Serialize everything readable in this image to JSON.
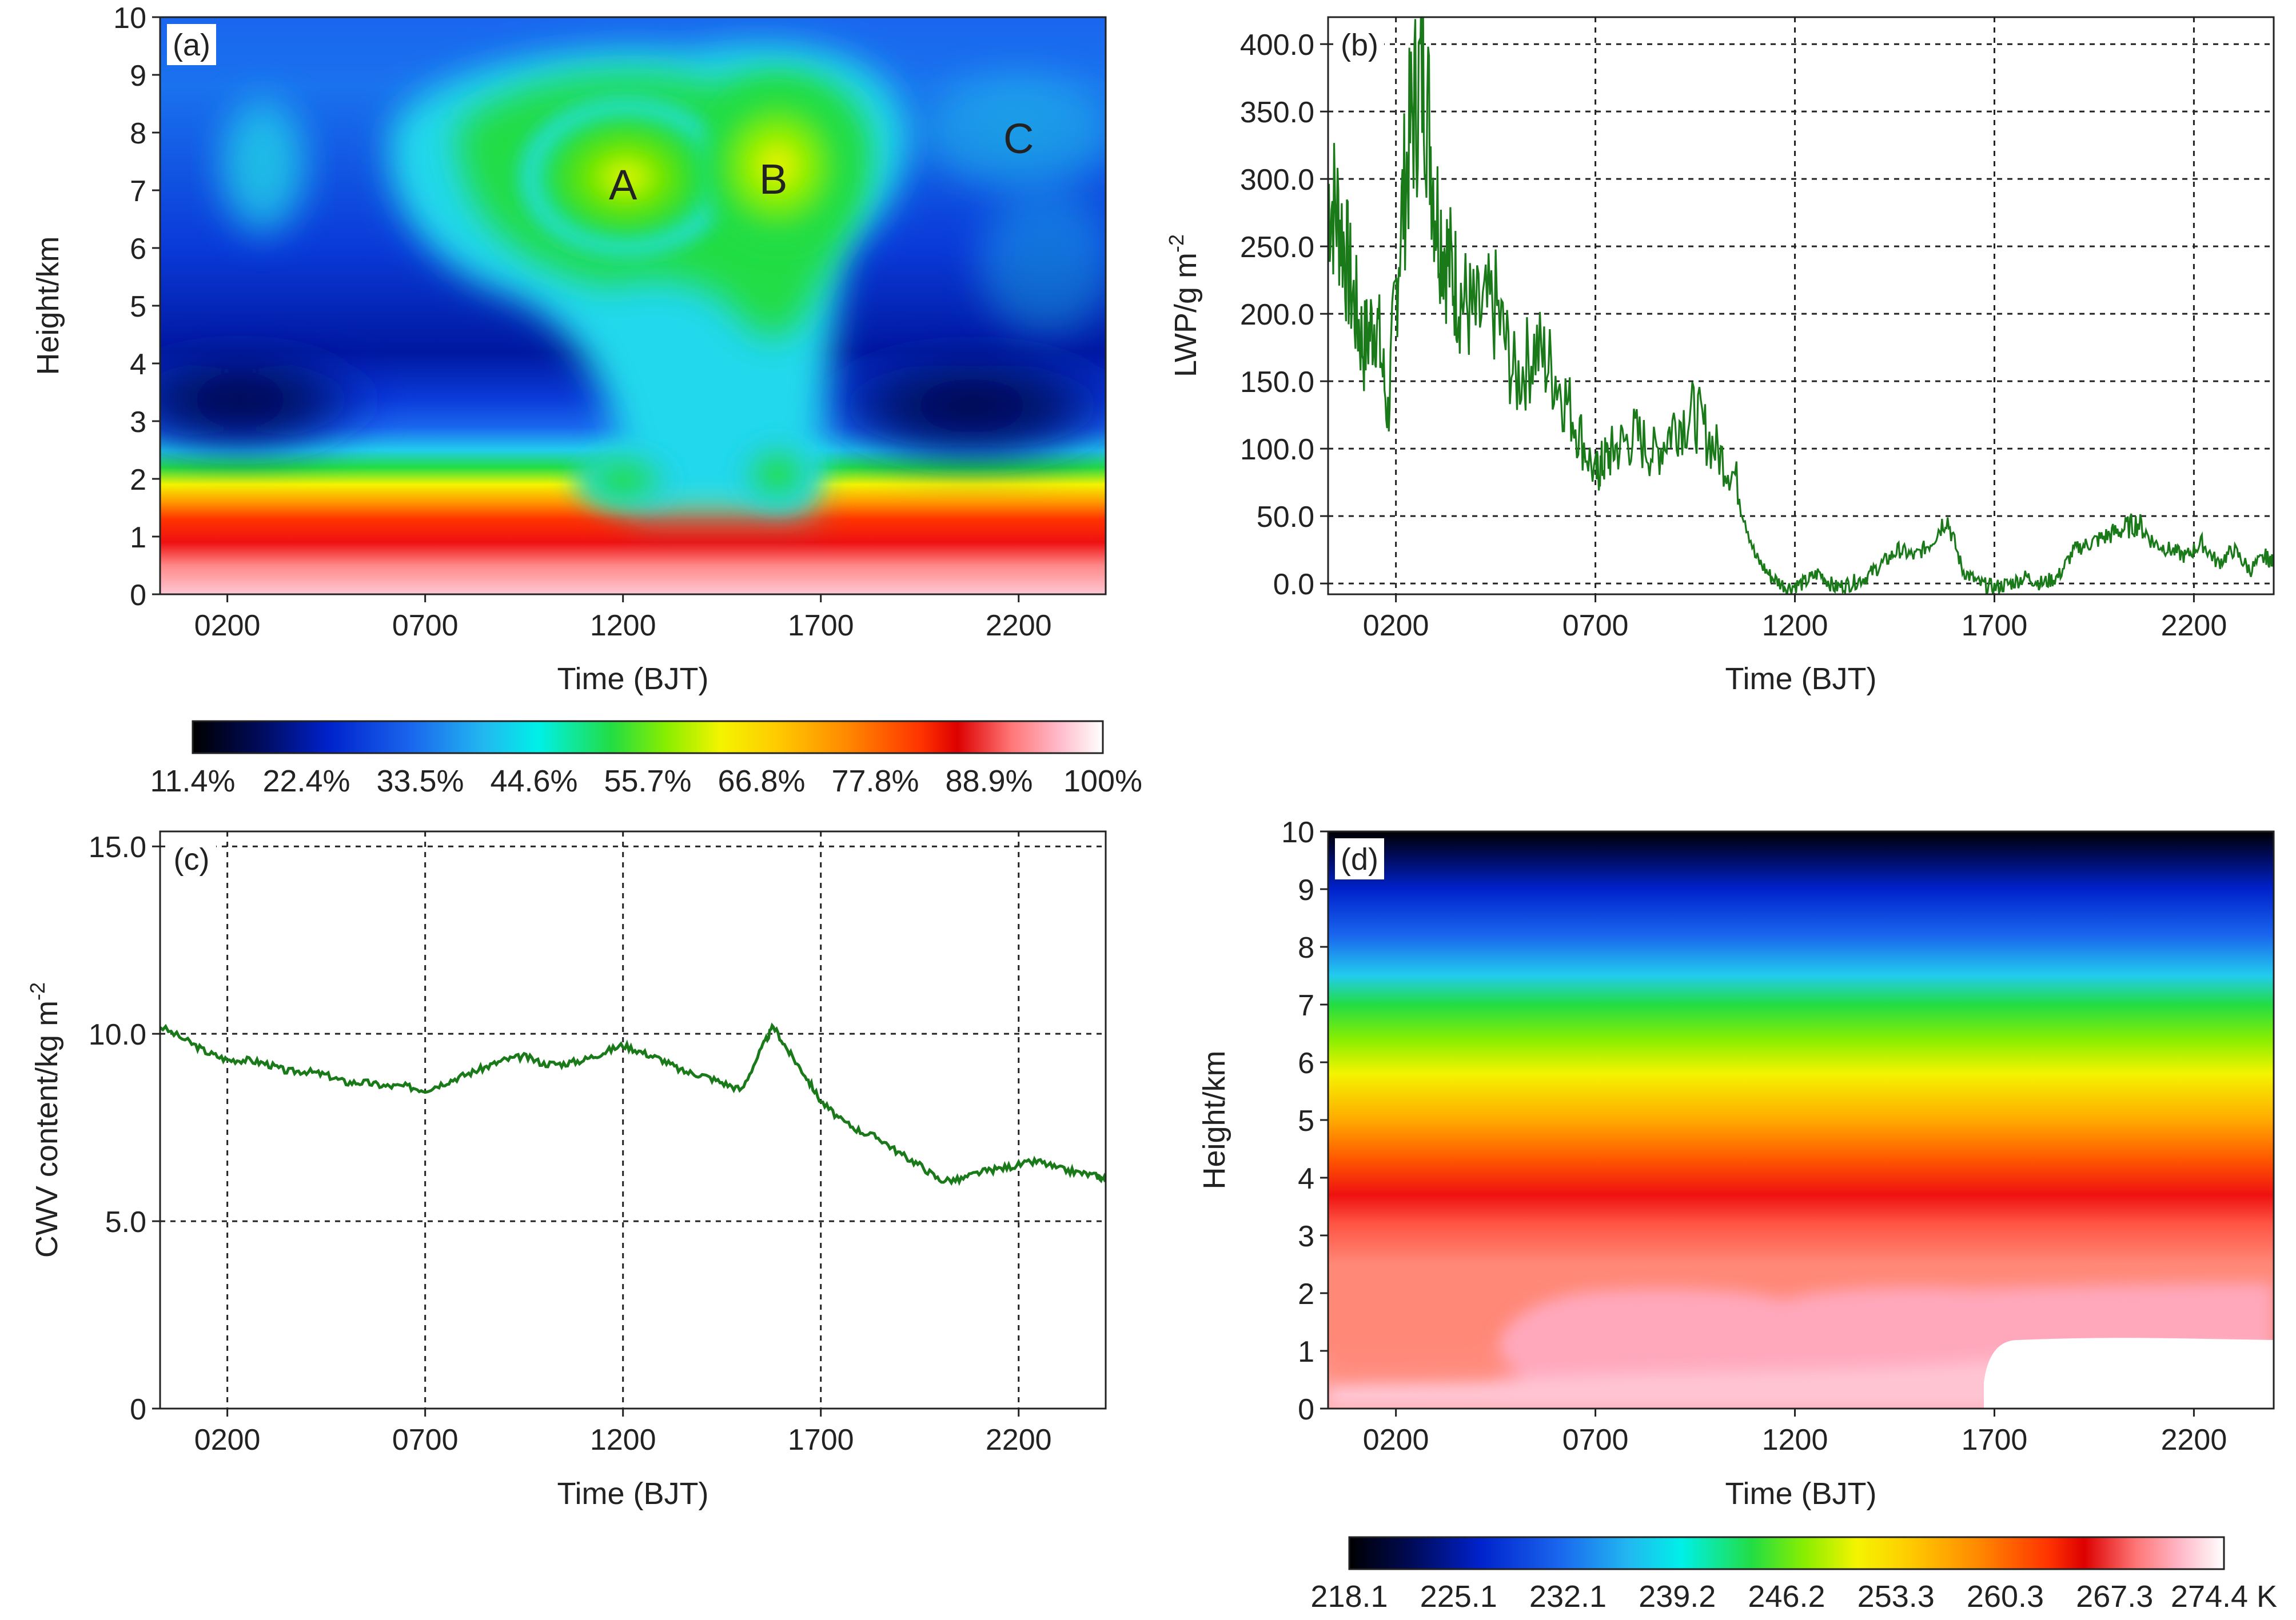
{
  "chart_data": [
    {
      "id": "a",
      "type": "heatmap",
      "panel_label": "(a)",
      "xlabel": "Time (BJT)",
      "ylabel": "Height/km",
      "x_ticks": [
        "0200",
        "0700",
        "1200",
        "1700",
        "2200"
      ],
      "x_tick_hours": [
        2,
        7,
        12,
        17,
        22
      ],
      "xlim_hours": [
        0.3,
        24.2
      ],
      "y_ticks": [
        "0",
        "1",
        "2",
        "3",
        "4",
        "5",
        "6",
        "7",
        "8",
        "9",
        "10"
      ],
      "ylim": [
        0,
        10
      ],
      "quantity": "relative humidity (%)",
      "annotations": [
        {
          "text": "A",
          "hour": 12.0,
          "height": 7.1
        },
        {
          "text": "B",
          "hour": 15.8,
          "height": 7.2
        },
        {
          "text": "C",
          "hour": 22.0,
          "height": 7.9
        }
      ],
      "colorbar": {
        "tick_labels": [
          "11.4%",
          "22.4%",
          "33.5%",
          "44.6%",
          "55.7%",
          "66.8%",
          "77.8%",
          "88.9%",
          "100%"
        ],
        "min": 11.4,
        "max": 100
      }
    },
    {
      "id": "b",
      "type": "line",
      "panel_label": "(b)",
      "xlabel": "Time (BJT)",
      "ylabel_main": "LWP/g m",
      "ylabel_sup": "-2",
      "x_ticks": [
        "0200",
        "0700",
        "1200",
        "1700",
        "2200"
      ],
      "x_tick_hours": [
        2,
        7,
        12,
        17,
        22
      ],
      "xlim_hours": [
        0.3,
        24.0
      ],
      "y_ticks": [
        "0.0",
        "50.0",
        "100.0",
        "150.0",
        "200.0",
        "250.0",
        "300.0",
        "350.0",
        "400.0"
      ],
      "ylim": [
        -8,
        420
      ],
      "grid": true,
      "series": [
        {
          "color": "#1a7a1a",
          "x": [
            0.3,
            0.6,
            0.9,
            1.2,
            1.5,
            1.8,
            2.1,
            2.4,
            2.7,
            3.0,
            3.3,
            3.6,
            4.0,
            4.5,
            5.0,
            5.5,
            6.0,
            6.5,
            7.0,
            7.2,
            7.5,
            8.0,
            8.5,
            9.0,
            9.5,
            10.0,
            10.5,
            11.0,
            11.4,
            11.8,
            12.2,
            12.6,
            13.0,
            13.4,
            13.8,
            14.2,
            14.6,
            15.0,
            15.4,
            15.8,
            16.2,
            16.6,
            17.0,
            17.4,
            17.8,
            18.2,
            18.6,
            19.0,
            19.4,
            19.8,
            20.2,
            20.6,
            21.0,
            21.4,
            21.8,
            22.2,
            22.6,
            23.0,
            23.4,
            23.8,
            24.0
          ],
          "y": [
            290,
            270,
            215,
            175,
            200,
            125,
            260,
            345,
            385,
            280,
            240,
            215,
            195,
            205,
            150,
            175,
            155,
            120,
            80,
            90,
            100,
            110,
            95,
            120,
            125,
            100,
            80,
            20,
            5,
            -3,
            0,
            8,
            -3,
            0,
            5,
            15,
            25,
            20,
            30,
            50,
            10,
            0,
            -3,
            0,
            5,
            0,
            5,
            25,
            30,
            35,
            40,
            45,
            30,
            25,
            20,
            30,
            15,
            25,
            10,
            20,
            15
          ]
        }
      ]
    },
    {
      "id": "c",
      "type": "line",
      "panel_label": "(c)",
      "xlabel": "Time (BJT)",
      "ylabel_main": "CWV content/kg m",
      "ylabel_sup": "-2",
      "x_ticks": [
        "0200",
        "0700",
        "1200",
        "1700",
        "2200"
      ],
      "x_tick_hours": [
        2,
        7,
        12,
        17,
        22
      ],
      "xlim_hours": [
        0.3,
        24.2
      ],
      "y_ticks": [
        "0",
        "5.0",
        "10.0",
        "15.0"
      ],
      "y_tick_values": [
        0,
        5,
        10,
        15
      ],
      "ylim": [
        0,
        15.4
      ],
      "grid": true,
      "series": [
        {
          "color": "#1a7a1a",
          "x": [
            0.3,
            1.0,
            1.5,
            2.0,
            2.5,
            3.0,
            3.5,
            4.0,
            4.5,
            5.0,
            5.5,
            6.0,
            6.5,
            7.0,
            7.5,
            8.0,
            8.5,
            9.0,
            9.5,
            10.0,
            10.5,
            11.0,
            11.5,
            12.0,
            12.5,
            13.0,
            13.5,
            14.0,
            14.5,
            15.0,
            15.5,
            15.8,
            16.2,
            16.6,
            17.0,
            17.5,
            18.0,
            18.5,
            19.0,
            19.5,
            20.0,
            20.5,
            21.0,
            21.5,
            22.0,
            22.5,
            23.0,
            23.5,
            24.0,
            24.2
          ],
          "y": [
            10.2,
            9.8,
            9.5,
            9.3,
            9.3,
            9.2,
            9.0,
            9.0,
            8.9,
            8.7,
            8.7,
            8.6,
            8.6,
            8.5,
            8.7,
            8.9,
            9.1,
            9.3,
            9.4,
            9.2,
            9.2,
            9.3,
            9.5,
            9.7,
            9.5,
            9.3,
            9.0,
            8.9,
            8.7,
            8.5,
            9.6,
            10.2,
            9.5,
            8.9,
            8.2,
            7.7,
            7.4,
            7.2,
            6.8,
            6.5,
            6.1,
            6.1,
            6.3,
            6.4,
            6.5,
            6.6,
            6.4,
            6.3,
            6.2,
            6.1
          ]
        }
      ]
    },
    {
      "id": "d",
      "type": "heatmap",
      "panel_label": "(d)",
      "xlabel": "Time (BJT)",
      "ylabel": "Height/km",
      "x_ticks": [
        "0200",
        "0700",
        "1200",
        "1700",
        "2200"
      ],
      "x_tick_hours": [
        2,
        7,
        12,
        17,
        22
      ],
      "xlim_hours": [
        0.3,
        24.0
      ],
      "y_ticks": [
        "0",
        "1",
        "2",
        "3",
        "4",
        "5",
        "6",
        "7",
        "8",
        "9",
        "10"
      ],
      "ylim": [
        0,
        10
      ],
      "quantity": "temperature (K)",
      "colorbar": {
        "tick_labels": [
          "218.1",
          "225.1",
          "232.1",
          "239.2",
          "246.2",
          "253.3",
          "260.3",
          "267.3",
          "274.4 K"
        ],
        "min": 218.1,
        "max": 274.4
      }
    }
  ]
}
